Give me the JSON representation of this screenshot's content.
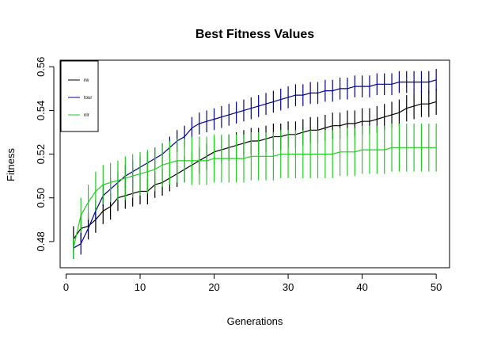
{
  "chart_data": {
    "type": "line",
    "title": "Best Fitness Values",
    "xlabel": "Generations",
    "ylabel": "Fitness",
    "xlim": [
      -0.8,
      51.8
    ],
    "ylim": [
      0.468,
      0.563
    ],
    "xticks": [
      0,
      10,
      20,
      30,
      40,
      50
    ],
    "yticks": [
      0.48,
      0.5,
      0.52,
      0.54,
      0.56
    ],
    "ytick_labels": [
      "0.48",
      "0.50",
      "0.52",
      "0.54",
      "0.56"
    ],
    "grid": false,
    "legend_position": "top-left",
    "x": [
      1,
      2,
      3,
      4,
      5,
      6,
      7,
      8,
      9,
      10,
      11,
      12,
      13,
      14,
      15,
      16,
      17,
      18,
      19,
      20,
      21,
      22,
      23,
      24,
      25,
      26,
      27,
      28,
      29,
      30,
      31,
      32,
      33,
      34,
      35,
      36,
      37,
      38,
      39,
      40,
      41,
      42,
      43,
      44,
      45,
      46,
      47,
      48,
      49,
      50
    ],
    "series": [
      {
        "name": "rw",
        "color": "#000000",
        "values": [
          0.481,
          0.486,
          0.487,
          0.49,
          0.494,
          0.496,
          0.5,
          0.501,
          0.502,
          0.503,
          0.503,
          0.506,
          0.507,
          0.509,
          0.511,
          0.513,
          0.515,
          0.517,
          0.519,
          0.521,
          0.522,
          0.523,
          0.524,
          0.525,
          0.526,
          0.526,
          0.527,
          0.528,
          0.528,
          0.529,
          0.529,
          0.53,
          0.531,
          0.531,
          0.532,
          0.533,
          0.533,
          0.534,
          0.534,
          0.535,
          0.535,
          0.536,
          0.537,
          0.538,
          0.539,
          0.541,
          0.542,
          0.543,
          0.543,
          0.544
        ],
        "errors": [
          0.006,
          0.006,
          0.006,
          0.006,
          0.006,
          0.006,
          0.006,
          0.006,
          0.006,
          0.006,
          0.006,
          0.006,
          0.006,
          0.006,
          0.006,
          0.006,
          0.006,
          0.006,
          0.006,
          0.006,
          0.006,
          0.006,
          0.006,
          0.006,
          0.006,
          0.006,
          0.006,
          0.006,
          0.006,
          0.006,
          0.006,
          0.006,
          0.006,
          0.006,
          0.006,
          0.006,
          0.006,
          0.006,
          0.006,
          0.006,
          0.006,
          0.006,
          0.006,
          0.006,
          0.006,
          0.006,
          0.006,
          0.006,
          0.006,
          0.006
        ]
      },
      {
        "name": "tour",
        "color": "#00008b",
        "values": [
          0.477,
          0.479,
          0.486,
          0.494,
          0.501,
          0.504,
          0.507,
          0.51,
          0.512,
          0.514,
          0.516,
          0.518,
          0.52,
          0.523,
          0.526,
          0.528,
          0.532,
          0.534,
          0.535,
          0.536,
          0.537,
          0.538,
          0.539,
          0.54,
          0.541,
          0.542,
          0.543,
          0.544,
          0.545,
          0.546,
          0.547,
          0.547,
          0.548,
          0.548,
          0.549,
          0.549,
          0.55,
          0.55,
          0.551,
          0.551,
          0.551,
          0.552,
          0.552,
          0.552,
          0.553,
          0.553,
          0.553,
          0.553,
          0.553,
          0.554
        ],
        "errors": [
          0.005,
          0.005,
          0.005,
          0.005,
          0.005,
          0.005,
          0.005,
          0.005,
          0.005,
          0.005,
          0.005,
          0.005,
          0.005,
          0.005,
          0.005,
          0.005,
          0.005,
          0.005,
          0.005,
          0.005,
          0.005,
          0.005,
          0.005,
          0.005,
          0.005,
          0.005,
          0.005,
          0.005,
          0.005,
          0.005,
          0.005,
          0.005,
          0.005,
          0.005,
          0.005,
          0.005,
          0.005,
          0.005,
          0.005,
          0.005,
          0.005,
          0.005,
          0.005,
          0.005,
          0.005,
          0.005,
          0.005,
          0.005,
          0.005,
          0.005
        ]
      },
      {
        "name": "nlr",
        "color": "#22cc22",
        "values": [
          0.477,
          0.492,
          0.498,
          0.503,
          0.506,
          0.507,
          0.508,
          0.509,
          0.51,
          0.511,
          0.512,
          0.513,
          0.515,
          0.516,
          0.517,
          0.517,
          0.517,
          0.517,
          0.517,
          0.518,
          0.518,
          0.518,
          0.518,
          0.518,
          0.519,
          0.519,
          0.519,
          0.519,
          0.52,
          0.52,
          0.52,
          0.52,
          0.52,
          0.52,
          0.52,
          0.52,
          0.521,
          0.521,
          0.521,
          0.522,
          0.522,
          0.522,
          0.522,
          0.523,
          0.523,
          0.523,
          0.523,
          0.523,
          0.523,
          0.523
        ],
        "errors": [
          0.005,
          0.008,
          0.008,
          0.009,
          0.009,
          0.009,
          0.009,
          0.01,
          0.01,
          0.01,
          0.01,
          0.01,
          0.01,
          0.01,
          0.01,
          0.01,
          0.011,
          0.011,
          0.011,
          0.011,
          0.011,
          0.011,
          0.011,
          0.011,
          0.011,
          0.011,
          0.011,
          0.011,
          0.011,
          0.011,
          0.011,
          0.011,
          0.011,
          0.011,
          0.011,
          0.011,
          0.011,
          0.011,
          0.011,
          0.011,
          0.011,
          0.011,
          0.011,
          0.011,
          0.011,
          0.011,
          0.011,
          0.011,
          0.011,
          0.011
        ]
      }
    ]
  }
}
